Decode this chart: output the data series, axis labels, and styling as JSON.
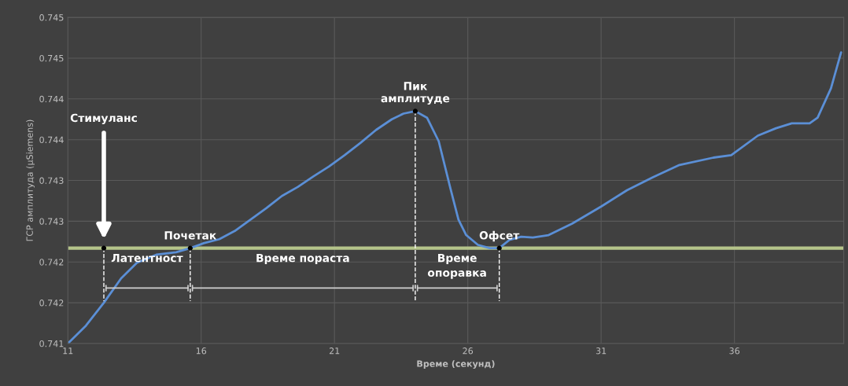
{
  "chart_data": {
    "type": "line",
    "xlabel": "Време (секунд)",
    "ylabel": "ГСР амплитуда (µSiemens)",
    "x": [
      11.0,
      11.68,
      12.35,
      13.0,
      13.59,
      14.32,
      15.06,
      15.59,
      16.09,
      16.68,
      17.26,
      17.85,
      18.44,
      19.03,
      19.62,
      20.21,
      20.79,
      21.38,
      21.97,
      22.56,
      23.15,
      23.59,
      24.03,
      24.47,
      24.91,
      25.35,
      25.65,
      25.94,
      26.38,
      26.82,
      27.18,
      27.56,
      28.0,
      28.44,
      29.03,
      29.91,
      31.0,
      31.97,
      32.94,
      33.94,
      35.21,
      35.88,
      36.88,
      37.56,
      38.15,
      38.82,
      39.12,
      39.62,
      40.0
    ],
    "series": [
      {
        "color": "#5b8fd6",
        "values": [
          0.741,
          0.74122,
          0.7415,
          0.7418,
          0.74199,
          0.74209,
          0.74212,
          0.74217,
          0.74223,
          0.74228,
          0.74238,
          0.74252,
          0.74266,
          0.74281,
          0.74292,
          0.74305,
          0.74317,
          0.74331,
          0.74346,
          0.74362,
          0.74375,
          0.74382,
          0.74385,
          0.74377,
          0.74348,
          0.7429,
          0.74252,
          0.74233,
          0.74221,
          0.74217,
          0.74217,
          0.74227,
          0.74231,
          0.7423,
          0.74233,
          0.74247,
          0.74268,
          0.74288,
          0.74304,
          0.74319,
          0.74328,
          0.74331,
          0.74355,
          0.74364,
          0.7437,
          0.7437,
          0.74377,
          0.74413,
          0.74457
        ]
      },
      {
        "type": "scatter",
        "color": "#000000",
        "x": [
          12.35,
          15.59,
          24.03,
          27.18
        ],
        "values": [
          0.74217,
          0.74217,
          0.74385,
          0.74217
        ]
      }
    ],
    "xlim": [
      11,
      40.1
    ],
    "xticks": [
      11,
      16,
      21,
      26,
      31,
      36
    ],
    "ylim": [
      0.741,
      0.745
    ],
    "yticks": [
      {
        "value": 0.741,
        "label": "0.741"
      },
      {
        "value": 0.7415,
        "label": "0.742"
      },
      {
        "value": 0.742,
        "label": "0.742"
      },
      {
        "value": 0.7425,
        "label": "0.743"
      },
      {
        "value": 0.743,
        "label": "0.743"
      },
      {
        "value": 0.7435,
        "label": "0.744"
      },
      {
        "value": 0.744,
        "label": "0.744"
      },
      {
        "value": 0.7445,
        "label": "0.745"
      },
      {
        "value": 0.745,
        "label": "0.745"
      }
    ],
    "ref_lines": [
      {
        "axis": "y",
        "value": 0.74217,
        "color": "#b5c48a"
      }
    ],
    "annotations": [
      "Стимуланс",
      {
        "text": "Почетак",
        "x": 15.59,
        "y": 0.74217
      },
      {
        "text": "Пик\nамплитуде",
        "x": 24.03,
        "y": 0.74385
      },
      {
        "text": "Офсет",
        "x": 27.18,
        "y": 0.74217
      },
      {
        "text": "Латентност",
        "x": 13.97,
        "y": 0.74217
      },
      {
        "text": "Време пораста",
        "x": 19.81,
        "y": 0.74217
      },
      {
        "text": "Време\nопоравка",
        "x": 25.6,
        "y": 0.74217
      }
    ],
    "grid": true,
    "marker": "none",
    "line_style": "solid",
    "legend": false
  }
}
